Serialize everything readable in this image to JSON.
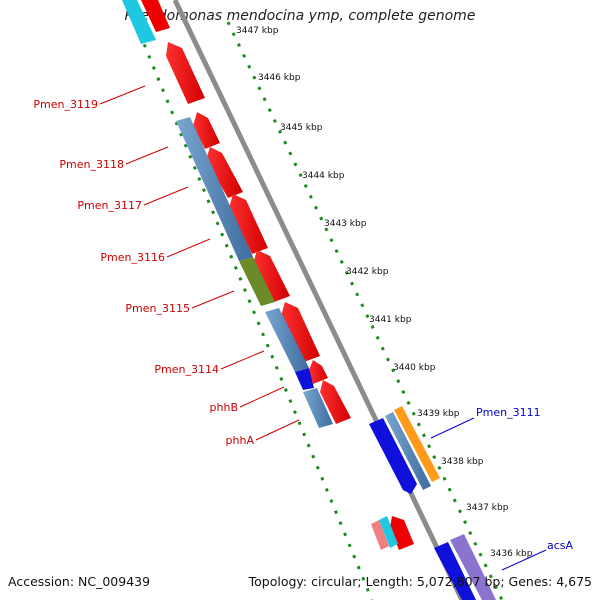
{
  "title": "Pseudomonas mendocina ymp, complete genome",
  "footer": {
    "accession": "Accession: NC_009439",
    "summary": "Topology: circular; Length: 5,072,807 bp; Genes: 4,675"
  },
  "ticks": [
    "3447 kbp",
    "3446 kbp",
    "3445 kbp",
    "3444 kbp",
    "3443 kbp",
    "3442 kbp",
    "3441 kbp",
    "3440 kbp",
    "3439 kbp",
    "3438 kbp",
    "3437 kbp",
    "3436 kbp"
  ],
  "gene_labels_left": [
    "Pmen_3119",
    "Pmen_3118",
    "Pmen_3117",
    "Pmen_3116",
    "Pmen_3115",
    "Pmen_3114",
    "phhB",
    "phhA"
  ],
  "gene_labels_right": [
    "Pmen_3111",
    "acsA"
  ],
  "colors": {
    "backbone": "#8c8c8c",
    "tick_dots": "#1a8a1a",
    "red_gene": "#ee0000",
    "blue_gene": "#4a7fb0",
    "dark_blue_gene": "#1010dd",
    "olive_gene": "#6b8a2a",
    "orange_gene": "#ff9a1a",
    "cyan_gene": "#1ec8e0",
    "pink_gene": "#f08080",
    "purple_gene": "#8a74d0",
    "left_label": "#cc0000",
    "right_label": "#0000cc"
  }
}
